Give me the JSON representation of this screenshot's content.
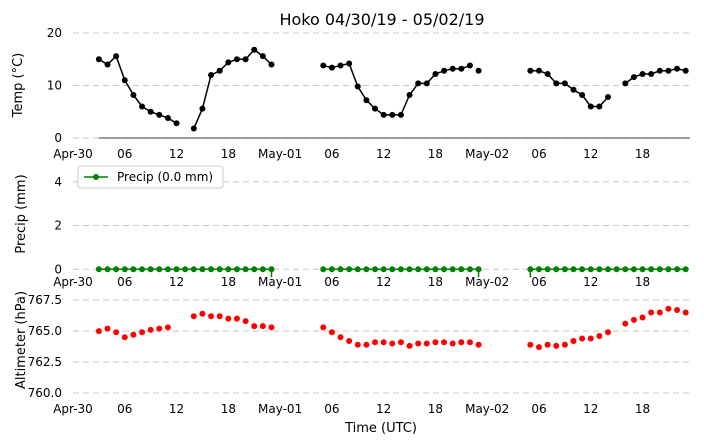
{
  "chart_data": [
    {
      "type": "line",
      "title": "Hoko 04/30/19 - 05/02/19",
      "ylabel": "Temp (°C)",
      "ylim": [
        0,
        20
      ],
      "yticks": [
        "0",
        "10",
        "20"
      ],
      "grid": "horizontal-dashed",
      "color": "#000000",
      "x_unit": "hours since 04/30 00:00 UTC",
      "xticks": [
        {
          "x": 0,
          "label": "Apr-30"
        },
        {
          "x": 6,
          "label": "06"
        },
        {
          "x": 12,
          "label": "12"
        },
        {
          "x": 18,
          "label": "18"
        },
        {
          "x": 24,
          "label": "May-01"
        },
        {
          "x": 30,
          "label": "06"
        },
        {
          "x": 36,
          "label": "12"
        },
        {
          "x": 42,
          "label": "18"
        },
        {
          "x": 48,
          "label": "May-02"
        },
        {
          "x": 54,
          "label": "06"
        },
        {
          "x": 60,
          "label": "12"
        },
        {
          "x": 66,
          "label": "18"
        }
      ],
      "series": [
        {
          "x": [
            3,
            4,
            5,
            6,
            7,
            8,
            9,
            10,
            11,
            12
          ],
          "y": [
            15.0,
            14.0,
            15.6,
            11.0,
            8.2,
            6.0,
            5.0,
            4.4,
            3.8,
            2.8
          ]
        },
        {
          "x": [
            14,
            15,
            16,
            17,
            18,
            19,
            20,
            21,
            22,
            23
          ],
          "y": [
            1.8,
            5.6,
            12.0,
            12.8,
            14.4,
            15.0,
            15.0,
            16.8,
            15.6,
            14.0
          ]
        },
        {
          "x": [
            29,
            30,
            31,
            32,
            33,
            34,
            35,
            36,
            37,
            38,
            39,
            40,
            41,
            42,
            43,
            44,
            45,
            46
          ],
          "y": [
            13.8,
            13.4,
            13.8,
            14.2,
            9.8,
            7.2,
            5.6,
            4.4,
            4.4,
            4.4,
            8.2,
            10.4,
            10.4,
            12.2,
            12.8,
            13.2,
            13.2,
            13.8
          ]
        },
        {
          "x": [
            47
          ],
          "y": [
            12.8
          ]
        },
        {
          "x": [
            53,
            54,
            55,
            56,
            57,
            58,
            59,
            60,
            61,
            62
          ],
          "y": [
            12.8,
            12.8,
            12.2,
            10.4,
            10.4,
            9.2,
            8.2,
            6.0,
            6.0,
            7.8
          ]
        },
        {
          "x": [
            64,
            65,
            66,
            67,
            68,
            69,
            70,
            71
          ],
          "y": [
            10.4,
            11.6,
            12.2,
            12.2,
            12.8,
            12.8,
            13.2,
            12.8
          ]
        }
      ]
    },
    {
      "type": "line",
      "ylabel": "Precip (mm)",
      "ylim": [
        -0.4,
        5
      ],
      "yticks": [
        "0",
        "2",
        "4"
      ],
      "grid": "horizontal-dashed",
      "color": "#008000",
      "legend": {
        "label": "Precip (0.0 mm)",
        "placement": "top-left"
      },
      "xticks": [
        {
          "x": 0,
          "label": "Apr-30"
        },
        {
          "x": 6,
          "label": "06"
        },
        {
          "x": 12,
          "label": "12"
        },
        {
          "x": 18,
          "label": "18"
        },
        {
          "x": 24,
          "label": "May-01"
        },
        {
          "x": 30,
          "label": "06"
        },
        {
          "x": 36,
          "label": "12"
        },
        {
          "x": 42,
          "label": "18"
        },
        {
          "x": 48,
          "label": "May-02"
        },
        {
          "x": 54,
          "label": "06"
        },
        {
          "x": 60,
          "label": "12"
        },
        {
          "x": 66,
          "label": "18"
        }
      ],
      "stems_at": [
        23,
        47,
        53
      ],
      "series": [
        {
          "x": [
            3,
            4,
            5,
            6,
            7,
            8,
            9,
            10,
            11,
            12,
            13,
            14,
            15,
            16,
            17,
            18,
            19,
            20,
            21,
            22,
            23
          ],
          "y": [
            0,
            0,
            0,
            0,
            0,
            0,
            0,
            0,
            0,
            0,
            0,
            0,
            0,
            0,
            0,
            0,
            0,
            0,
            0,
            0,
            0
          ]
        },
        {
          "x": [
            29,
            30,
            31,
            32,
            33,
            34,
            35,
            36,
            37,
            38,
            39,
            40,
            41,
            42,
            43,
            44,
            45,
            46,
            47
          ],
          "y": [
            0,
            0,
            0,
            0,
            0,
            0,
            0,
            0,
            0,
            0,
            0,
            0,
            0,
            0,
            0,
            0,
            0,
            0,
            0
          ]
        },
        {
          "x": [
            53,
            54,
            55,
            56,
            57,
            58,
            59,
            60,
            61,
            62,
            63,
            64,
            65,
            66,
            67,
            68,
            69,
            70,
            71
          ],
          "y": [
            0,
            0,
            0,
            0,
            0,
            0,
            0,
            0,
            0,
            0,
            0,
            0,
            0,
            0,
            0,
            0,
            0,
            0,
            0
          ]
        }
      ]
    },
    {
      "type": "scatter",
      "ylabel": "Altimeter (hPa)",
      "xlabel": "Time (UTC)",
      "ylim": [
        760.0,
        768.8
      ],
      "yticks": [
        "760.0",
        "762.5",
        "765.0",
        "767.5"
      ],
      "grid": "horizontal-dashed",
      "color": "#ff0000",
      "xticks": [
        {
          "x": 0,
          "label": "Apr-30"
        },
        {
          "x": 6,
          "label": "06"
        },
        {
          "x": 12,
          "label": "12"
        },
        {
          "x": 18,
          "label": "18"
        },
        {
          "x": 24,
          "label": "May-01"
        },
        {
          "x": 30,
          "label": "06"
        },
        {
          "x": 36,
          "label": "12"
        },
        {
          "x": 42,
          "label": "18"
        },
        {
          "x": 48,
          "label": "May-02"
        },
        {
          "x": 54,
          "label": "06"
        },
        {
          "x": 60,
          "label": "12"
        },
        {
          "x": 66,
          "label": "18"
        }
      ],
      "series": [
        {
          "x": [
            3,
            4,
            5,
            6,
            7,
            8,
            9,
            10,
            11
          ],
          "y": [
            765.0,
            765.2,
            764.9,
            764.5,
            764.7,
            764.9,
            765.1,
            765.2,
            765.3
          ]
        },
        {
          "x": [
            14,
            15,
            16,
            17,
            18,
            19,
            20,
            21,
            22,
            23
          ],
          "y": [
            766.2,
            766.4,
            766.2,
            766.2,
            766.0,
            766.0,
            765.8,
            765.4,
            765.4,
            765.3
          ]
        },
        {
          "x": [
            29,
            30,
            31,
            32,
            33,
            34,
            35,
            36,
            37,
            38,
            39,
            40,
            41,
            42,
            43,
            44,
            45,
            46,
            47
          ],
          "y": [
            765.3,
            764.9,
            764.5,
            764.2,
            763.9,
            763.9,
            764.1,
            764.1,
            764.0,
            764.1,
            763.8,
            764.0,
            764.0,
            764.1,
            764.1,
            764.0,
            764.1,
            764.1,
            763.9
          ]
        },
        {
          "x": [
            53,
            54,
            55,
            56,
            57,
            58,
            59,
            60,
            61,
            62
          ],
          "y": [
            763.9,
            763.7,
            763.9,
            763.8,
            763.9,
            764.2,
            764.4,
            764.4,
            764.6,
            764.9
          ]
        },
        {
          "x": [
            64,
            65,
            66,
            67,
            68,
            69,
            70,
            71
          ],
          "y": [
            765.6,
            765.9,
            766.1,
            766.5,
            766.5,
            766.8,
            766.7,
            766.5
          ]
        }
      ]
    }
  ]
}
